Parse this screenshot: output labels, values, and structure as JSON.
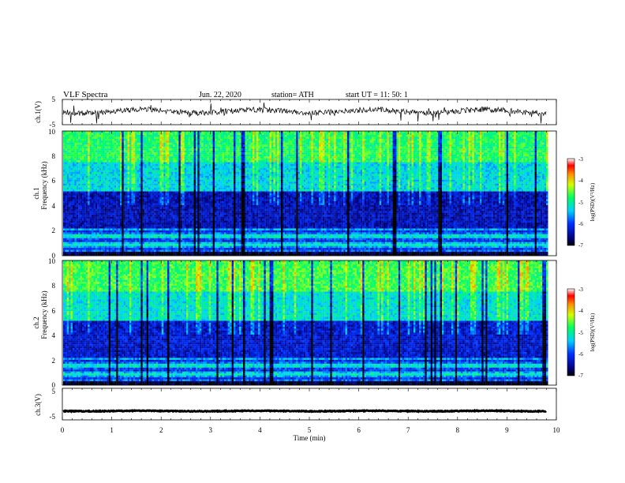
{
  "header": {
    "title": "VLF  Spectra",
    "date": "Jun. 22, 2020",
    "station": "station= ATH",
    "start": "start  UT  =    11: 50: 1"
  },
  "chart_data": [
    {
      "type": "line",
      "id": "ch1-waveform",
      "ylabel": "ch.1(V)",
      "ylim": [
        -5,
        5
      ],
      "yticks": [
        "5",
        "-5"
      ],
      "xlim": [
        0,
        10
      ],
      "data_end": 9.8,
      "baseline": 0.3,
      "description_color": "#000000"
    },
    {
      "type": "heatmap",
      "id": "ch1-spectrogram",
      "ylabel_lines": [
        "ch.1",
        "Frequency  (kHz)"
      ],
      "ylim": [
        0,
        10
      ],
      "yticks": [
        "0",
        "2",
        "4",
        "6",
        "8",
        "10"
      ],
      "xlim": [
        0,
        10
      ],
      "data_end": 9.8,
      "colorbar": {
        "label": "log(PSD)(V²/Hz)",
        "ticks": [
          "-3",
          "-4",
          "-5",
          "-6",
          "-7"
        ],
        "range": [
          -7,
          -3
        ]
      }
    },
    {
      "type": "heatmap",
      "id": "ch2-spectrogram",
      "ylabel_lines": [
        "ch.2",
        "Frequency  (kHz)"
      ],
      "ylim": [
        0,
        10
      ],
      "yticks": [
        "0",
        "2",
        "4",
        "6",
        "8",
        "10"
      ],
      "xlim": [
        0,
        10
      ],
      "data_end": 9.8,
      "colorbar": {
        "label": "log(PSD)(V²/Hz)",
        "ticks": [
          "-3",
          "-4",
          "-5",
          "-6",
          "-7"
        ],
        "range": [
          -7,
          -3
        ]
      }
    },
    {
      "type": "line",
      "id": "ch3-waveform",
      "ylabel": "ch.3(V)",
      "ylim": [
        -5,
        5
      ],
      "yticks": [
        "5",
        "-5"
      ],
      "xlim": [
        0,
        10
      ],
      "data_end": 9.8,
      "baseline": -2.2,
      "description_color": "#000000"
    }
  ],
  "xaxis": {
    "label": "Time  (min)",
    "ticks": [
      "0",
      "1",
      "2",
      "3",
      "4",
      "5",
      "6",
      "7",
      "8",
      "9",
      "10"
    ]
  }
}
